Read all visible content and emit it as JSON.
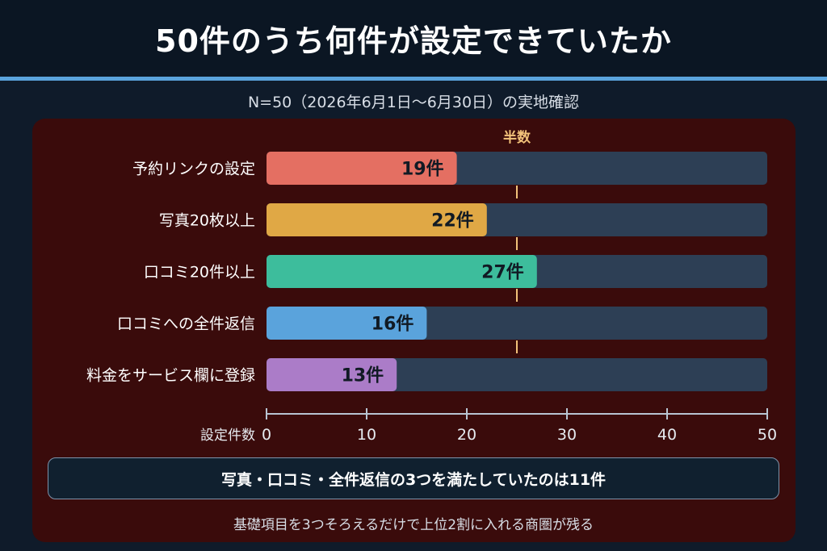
{
  "header": {
    "title": "50件のうち何件が設定できていたか"
  },
  "subtitle": "N=50（2026年6月1日〜6月30日）の実地確認",
  "chart_data": {
    "type": "bar",
    "orientation": "horizontal",
    "categories": [
      "予約リンクの設定",
      "写真20枚以上",
      "口コミ20件以上",
      "口コミへの全件返信",
      "料金をサービス欄に登録"
    ],
    "values": [
      19,
      22,
      27,
      16,
      13
    ],
    "value_labels": [
      "19件",
      "22件",
      "27件",
      "16件",
      "13件"
    ],
    "colors": [
      "#e46f62",
      "#e0a845",
      "#3dbd9c",
      "#5aa3dc",
      "#ab7cc8"
    ],
    "track_color": "#2d3f55",
    "xlabel": "設定件数",
    "xlim": [
      0,
      50
    ],
    "xticks": [
      0,
      10,
      20,
      30,
      40,
      50
    ],
    "reference_line": {
      "value": 25,
      "label": "半数",
      "color": "#f2c27a"
    },
    "grid": false
  },
  "callout": "写真・口コミ・全件返信の3つを満たしていたのは11件",
  "footnote": "基礎項目を3つそろえるだけで上位2割に入れる商圏が残る"
}
